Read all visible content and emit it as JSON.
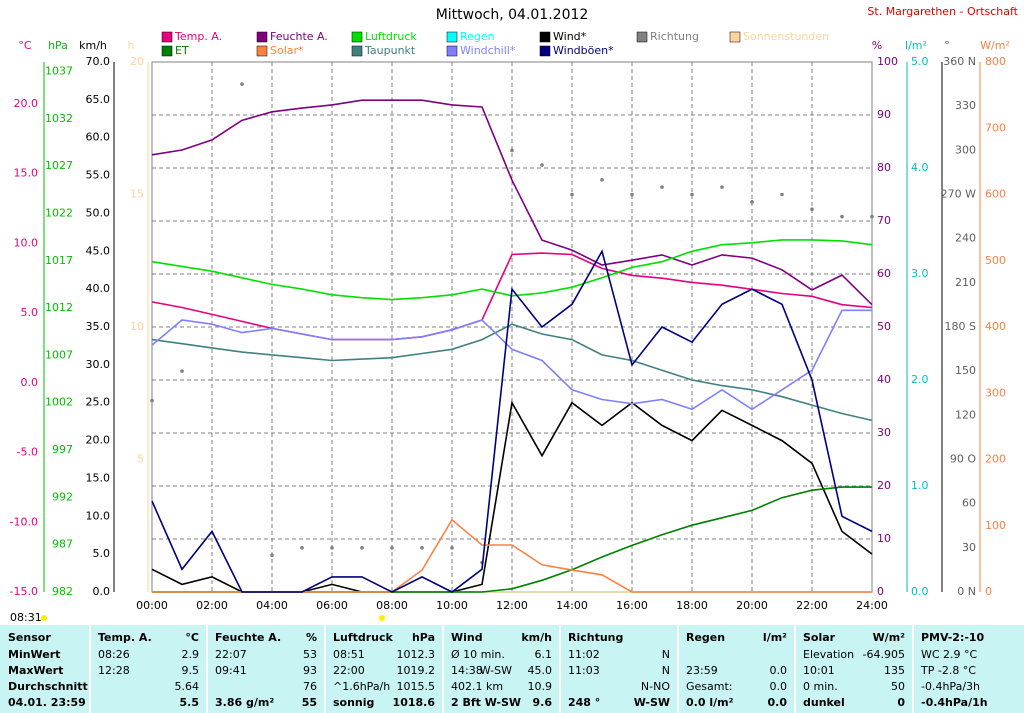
{
  "chart_data": {
    "type": "line",
    "title": "Mittwoch, 04.01.2012",
    "subtitle": "St. Margarethen - Ortschaft",
    "note": "08:31",
    "grid": true,
    "categories": [
      "00:00",
      null,
      "02:00",
      null,
      "04:00",
      null,
      "06:00",
      null,
      "08:00",
      null,
      "10:00",
      null,
      "12:00",
      null,
      "14:00",
      null,
      "16:00",
      null,
      "18:00",
      null,
      "20:00",
      null,
      "22:00",
      null,
      "24:00"
    ],
    "axes": {
      "temp": {
        "label": "°C",
        "color": "#e6007e",
        "lim": [
          -15,
          23
        ],
        "ticks": [
          {
            "value": 20,
            "label": "20.0"
          },
          {
            "value": 15,
            "label": "15.0"
          },
          {
            "value": 10,
            "label": "10.0"
          },
          {
            "value": 5,
            "label": "5.0"
          },
          {
            "value": 0,
            "label": "0.0"
          },
          {
            "value": -5,
            "label": "-5.0"
          },
          {
            "value": -10,
            "label": "-10.0"
          },
          {
            "value": -15,
            "label": "-15.0"
          }
        ]
      },
      "pressure": {
        "label": "hPa",
        "color": "#00c000",
        "lim": [
          982,
          1038
        ],
        "ticks": [
          1037,
          1032,
          1027,
          1022,
          1017,
          1012,
          1007,
          1002,
          997,
          992,
          987,
          982
        ]
      },
      "wind": {
        "label": "km/h",
        "color": "#000000",
        "lim": [
          0,
          70
        ],
        "ticks": [
          {
            "value": 70,
            "label": "70.0"
          },
          {
            "value": 65,
            "label": "65.0"
          },
          {
            "value": 60,
            "label": "60.0"
          },
          {
            "value": 55,
            "label": "55.0"
          },
          {
            "value": 50,
            "label": "50.0"
          },
          {
            "value": 45,
            "label": "45.0"
          },
          {
            "value": 40,
            "label": "40.0"
          },
          {
            "value": 35,
            "label": "35.0"
          },
          {
            "value": 30,
            "label": "30.0"
          },
          {
            "value": 25,
            "label": "25.0"
          },
          {
            "value": 20,
            "label": "20.0"
          },
          {
            "value": 15,
            "label": "15.0"
          },
          {
            "value": 10,
            "label": "10.0"
          },
          {
            "value": 5,
            "label": "5.0"
          },
          {
            "value": 0,
            "label": "0.0"
          }
        ]
      },
      "sun": {
        "label": "h",
        "color": "#ffd39b",
        "lim": [
          0,
          20
        ],
        "ticks": [
          20,
          15,
          10,
          5
        ]
      },
      "humidity": {
        "label": "%",
        "color": "#800080",
        "lim": [
          0,
          100
        ],
        "ticks": [
          100,
          90,
          80,
          70,
          60,
          50,
          40,
          30,
          20,
          10,
          0
        ]
      },
      "rain": {
        "label": "l/m²",
        "color": "#00c0c0",
        "lim": [
          0,
          5
        ],
        "ticks": [
          {
            "value": 5,
            "label": "5.0"
          },
          {
            "value": 4,
            "label": "4.0"
          },
          {
            "value": 3,
            "label": "3.0"
          },
          {
            "value": 2,
            "label": "2.0"
          },
          {
            "value": 1,
            "label": "1.0"
          },
          {
            "value": 0,
            "label": "0.0"
          }
        ]
      },
      "direction": {
        "label": "°",
        "color": "#606060",
        "lim": [
          0,
          360
        ],
        "ticks": [
          {
            "value": 360,
            "label": "360 N"
          },
          330,
          300,
          {
            "value": 270,
            "label": "270 W"
          },
          240,
          210,
          {
            "value": 180,
            "label": "180 S"
          },
          150,
          120,
          {
            "value": 90,
            "label": "90 O"
          },
          60,
          30,
          {
            "value": 0,
            "label": "0 N"
          }
        ]
      },
      "solar": {
        "label": "W/m²",
        "color": "#ff8040",
        "lim": [
          0,
          800
        ],
        "ticks": [
          800,
          700,
          600,
          500,
          400,
          300,
          200,
          100,
          0
        ]
      }
    },
    "series": [
      {
        "name": "Temp. A.",
        "color": "#e6007e",
        "axis": "temp",
        "values": [
          5.8,
          5.4,
          4.9,
          4.4,
          3.9,
          3.5,
          3.1,
          3.1,
          3.1,
          3.3,
          3.8,
          4.5,
          9.2,
          9.3,
          9.2,
          8.2,
          7.7,
          7.5,
          7.2,
          7.0,
          6.7,
          6.4,
          6.2,
          5.6,
          5.4
        ]
      },
      {
        "name": "Feuchte A.",
        "color": "#800080",
        "axis": "humidity",
        "values": [
          82.5,
          83.4,
          85.3,
          89,
          90.6,
          91.3,
          91.9,
          92.8,
          92.8,
          92.8,
          91.9,
          91.5,
          77.7,
          66.4,
          64.5,
          61.7,
          62.6,
          63.6,
          61.7,
          63.6,
          63,
          60.8,
          57,
          59.8,
          54.2
        ]
      },
      {
        "name": "Luftdruck",
        "color": "#00e000",
        "axis": "pressure",
        "values": [
          1016.9,
          1016.4,
          1015.9,
          1015.2,
          1014.5,
          1014,
          1013.4,
          1013.1,
          1012.9,
          1013.1,
          1013.4,
          1014,
          1013.3,
          1013.6,
          1014.2,
          1015.2,
          1016.3,
          1016.9,
          1018,
          1018.7,
          1018.9,
          1019.2,
          1019.2,
          1019.1,
          1018.7
        ]
      },
      {
        "name": "Regen",
        "color": "#00ffff",
        "axis": "rain",
        "values": [
          0,
          0,
          0,
          0,
          0,
          0,
          0,
          0,
          0,
          0,
          0,
          0,
          0,
          0,
          0,
          0,
          0,
          0,
          0,
          0,
          0,
          0,
          0,
          0,
          0
        ]
      },
      {
        "name": "Wind*",
        "color": "#000000",
        "axis": "wind",
        "values": [
          3,
          1,
          2,
          0,
          0,
          0,
          1,
          0,
          0,
          0,
          0,
          1,
          25,
          18,
          25,
          22,
          25,
          22,
          20,
          24,
          22,
          20,
          17,
          8,
          5
        ]
      },
      {
        "name": "Richtung",
        "color": "#808080",
        "axis": "direction",
        "style": "dots",
        "values": [
          130,
          150,
          null,
          345,
          25,
          30,
          30,
          30,
          30,
          30,
          30,
          20,
          300,
          290,
          270,
          280,
          270,
          275,
          270,
          275,
          265,
          270,
          260,
          255,
          255
        ]
      },
      {
        "name": "Sonnenstunden",
        "color": "#ffd39b",
        "axis": "sun",
        "values": [
          0,
          0,
          0,
          0,
          0,
          0,
          0,
          0,
          0,
          0,
          0,
          0,
          0,
          0,
          0,
          0,
          0,
          0,
          0,
          0,
          0,
          0,
          0,
          0,
          0
        ]
      },
      {
        "name": "ET",
        "color": "#008000",
        "axis": "rain",
        "values": [
          0,
          0,
          0,
          0,
          0,
          0,
          0,
          0,
          0,
          0,
          0,
          0,
          0.03,
          0.11,
          0.21,
          0.33,
          0.44,
          0.54,
          0.63,
          0.7,
          0.77,
          0.89,
          0.96,
          0.99,
          0.99
        ]
      },
      {
        "name": "Solar*",
        "color": "#ff8040",
        "axis": "solar",
        "values": [
          0,
          0,
          0,
          0,
          0,
          0,
          0,
          0,
          0,
          33,
          109,
          71,
          71,
          41,
          33,
          26,
          0,
          0,
          0,
          0,
          0,
          0,
          0,
          0,
          0
        ]
      },
      {
        "name": "Taupunkt",
        "color": "#408080",
        "axis": "temp",
        "values": [
          3.1,
          2.8,
          2.5,
          2.2,
          2.0,
          1.8,
          1.6,
          1.7,
          1.8,
          2.1,
          2.4,
          3.1,
          4.2,
          3.5,
          3.1,
          2.0,
          1.6,
          0.9,
          0.2,
          -0.2,
          -0.5,
          -1.0,
          -1.6,
          -2.2,
          -2.7
        ]
      },
      {
        "name": "Windchill*",
        "color": "#8080ff",
        "axis": "temp",
        "values": [
          2.7,
          4.5,
          4.2,
          3.6,
          3.9,
          3.5,
          3.1,
          3.1,
          3.1,
          3.3,
          3.8,
          4.5,
          2.4,
          1.6,
          -0.5,
          -1.2,
          -1.5,
          -1.2,
          -1.9,
          -0.5,
          -1.9,
          -0.5,
          0.9,
          5.2,
          5.2
        ]
      },
      {
        "name": "Windböen*",
        "color": "#000080",
        "axis": "wind",
        "values": [
          12,
          3,
          8,
          0,
          0,
          0,
          2,
          2,
          0,
          2,
          0,
          3,
          40,
          35,
          38,
          45,
          30,
          35,
          33,
          38,
          40,
          38,
          28,
          10,
          8
        ]
      }
    ]
  },
  "table": {
    "columns": [
      {
        "header": [
          "Sensor"
        ],
        "rows": [
          [
            "MinWert"
          ],
          [
            "MaxWert"
          ],
          [
            "Durchschnitt"
          ],
          [
            "04.01. 23:59"
          ]
        ]
      },
      {
        "header": [
          "Temp. A.",
          "°C"
        ],
        "rows": [
          [
            "08:26",
            "2.9"
          ],
          [
            "12:28",
            "9.5"
          ],
          [
            null,
            "5.64"
          ],
          [
            null,
            "5.5"
          ]
        ]
      },
      {
        "header": [
          "Feuchte A.",
          "%"
        ],
        "rows": [
          [
            "22:07",
            "53"
          ],
          [
            "09:41",
            "93"
          ],
          [
            null,
            "76"
          ],
          [
            "3.86 g/m²",
            "55"
          ]
        ]
      },
      {
        "header": [
          "Luftdruck",
          "hPa"
        ],
        "rows": [
          [
            "08:51",
            "1012.3"
          ],
          [
            "22:00",
            "1019.2"
          ],
          [
            "^1.6hPa/h",
            "1015.5"
          ],
          [
            "sonnig",
            "1018.6"
          ]
        ]
      },
      {
        "header": [
          "Wind",
          "km/h"
        ],
        "rows": [
          [
            "Ø 10 min.",
            "6.1"
          ],
          [
            "14:38",
            "W-SW",
            "45.0"
          ],
          [
            "402.1 km",
            "10.9"
          ],
          [
            "2 Bft W-SW",
            "9.6"
          ]
        ]
      },
      {
        "header": [
          "Richtung"
        ],
        "rows": [
          [
            "11:02",
            "N"
          ],
          [
            "11:03",
            "N"
          ],
          [
            null,
            "N-NO"
          ],
          [
            "248 °",
            "W-SW"
          ]
        ]
      },
      {
        "header": [
          "Regen",
          "l/m²"
        ],
        "rows": [
          [
            null
          ],
          [
            "23:59",
            "0.0"
          ],
          [
            "Gesamt:",
            "0.0"
          ],
          [
            "0.0 l/m²",
            "0.0"
          ]
        ]
      },
      {
        "header": [
          "Solar",
          "W/m²"
        ],
        "rows": [
          [
            "Elevation",
            "-64.905"
          ],
          [
            "10:01",
            "135"
          ],
          [
            "0 min.",
            "50"
          ],
          [
            "dunkel",
            "0"
          ]
        ]
      },
      {
        "header": [
          "PMV-2:-10"
        ],
        "rows": [
          [
            "WC 2.9 °C"
          ],
          [
            "TP -2.8 °C"
          ],
          [
            "-0.4hPa/3h"
          ],
          [
            "-0.4hPa/1h"
          ]
        ]
      }
    ]
  }
}
